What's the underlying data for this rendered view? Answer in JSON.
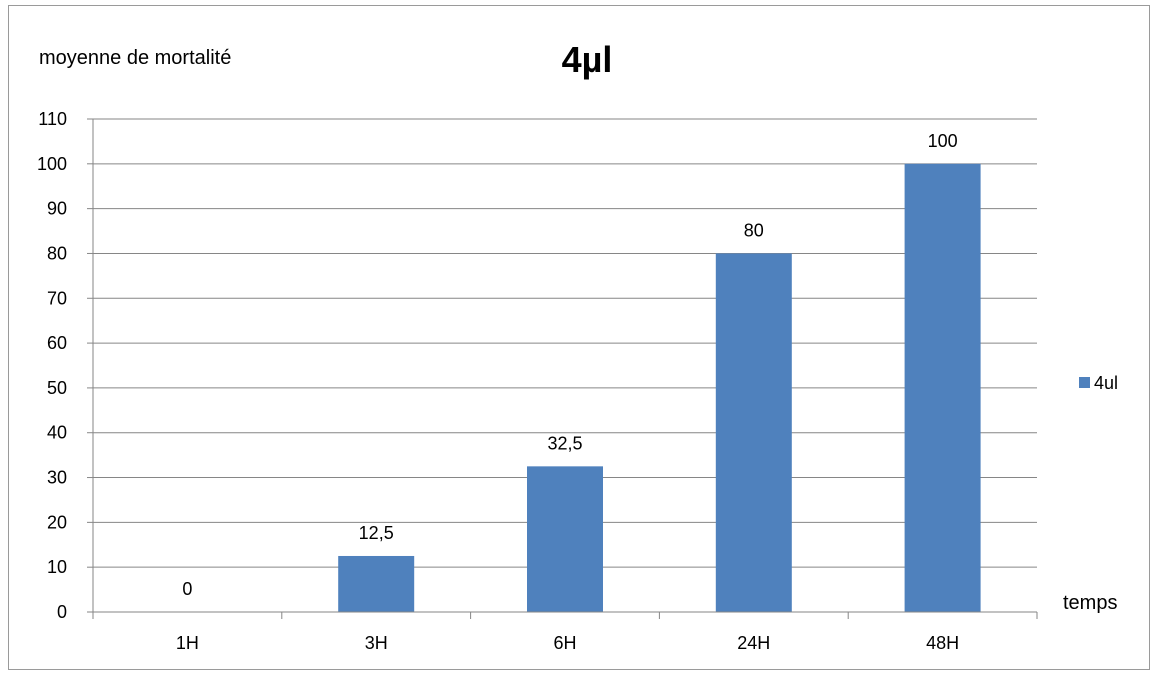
{
  "chart_data": {
    "type": "bar",
    "title": "4µl",
    "ylabel": "moyenne de mortalité",
    "xlabel": "temps",
    "categories": [
      "1H",
      "3H",
      "6H",
      "24H",
      "48H"
    ],
    "series": [
      {
        "name": "4ul",
        "values": [
          0,
          12.5,
          32.5,
          80,
          100
        ],
        "data_labels": [
          "0",
          "12,5",
          "32,5",
          "80",
          "100"
        ],
        "color": "#4f81bd"
      }
    ],
    "ylim": [
      0,
      110
    ],
    "yticks": [
      0,
      10,
      20,
      30,
      40,
      50,
      60,
      70,
      80,
      90,
      100,
      110
    ],
    "grid": true,
    "gridline_color": "#868686",
    "legend_position": "right"
  }
}
